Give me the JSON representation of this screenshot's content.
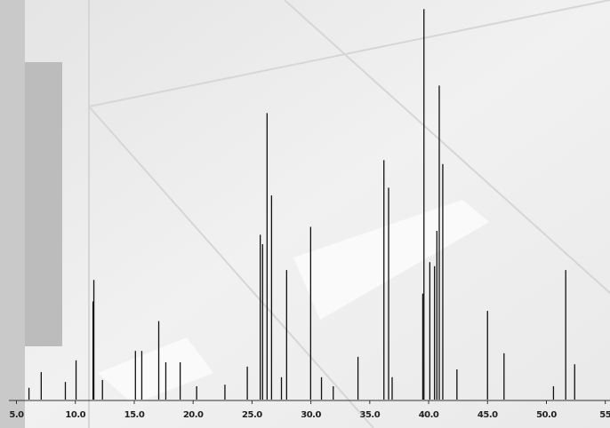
{
  "chart_data": {
    "type": "peaks",
    "x": [
      6.06,
      7.1,
      9.15,
      10.06,
      11.5,
      11.57,
      12.3,
      15.1,
      15.64,
      17.08,
      17.68,
      18.9,
      20.3,
      22.7,
      24.6,
      25.7,
      25.9,
      26.28,
      26.66,
      27.5,
      27.94,
      29.98,
      30.9,
      31.9,
      34.0,
      36.2,
      36.6,
      36.9,
      39.5,
      39.6,
      40.1,
      40.5,
      40.7,
      40.9,
      41.2,
      42.4,
      45.0,
      46.4,
      50.6,
      51.64,
      52.4
    ],
    "values": [
      3,
      7,
      4.5,
      10,
      25,
      30.5,
      5,
      12.4,
      12.4,
      20,
      9.5,
      9.5,
      3.4,
      3.8,
      8.4,
      42,
      39.6,
      73,
      52,
      5.7,
      33,
      44,
      5.7,
      3.4,
      10.9,
      61,
      54,
      5.7,
      27,
      99.5,
      35,
      34,
      43,
      80,
      60,
      7.7,
      22.6,
      11.8,
      3.4,
      33,
      9
    ],
    "color": "#111111",
    "xlim": [
      3.6,
      55.4
    ],
    "ylim": [
      0,
      100
    ],
    "xticks": [
      {
        "value": 5,
        "label": "5.0"
      },
      {
        "value": 10,
        "label": "10.0"
      },
      {
        "value": 15,
        "label": "15.0"
      },
      {
        "value": 20,
        "label": "20.0"
      },
      {
        "value": 25,
        "label": "25.0"
      },
      {
        "value": 30,
        "label": "30.0"
      },
      {
        "value": 35,
        "label": "35.0"
      },
      {
        "value": 40,
        "label": "40.0"
      },
      {
        "value": 45,
        "label": "45.0"
      },
      {
        "value": 50,
        "label": "50.0"
      },
      55
    ]
  }
}
